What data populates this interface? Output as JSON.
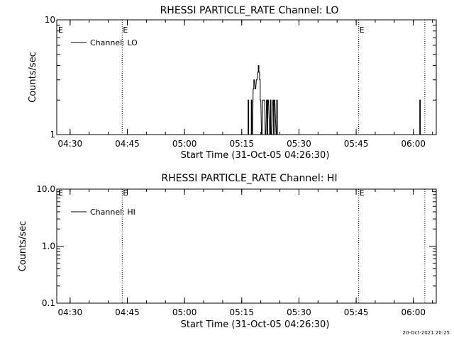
{
  "footer": {
    "timestamp": "20-Oct-2021 20:25"
  },
  "chart_data": [
    {
      "type": "line",
      "title": "RHESSI PARTICLE_RATE Channel: LO",
      "xlabel": "Start Time (31-Oct-05 04:26:30)",
      "ylabel": "Counts/sec",
      "yscale": "log",
      "ylim": [
        1,
        10
      ],
      "ytick_labels": [
        "1",
        "10"
      ],
      "xlim": [
        "04:26:30",
        "06:06:00"
      ],
      "xtick_labels": [
        "04:30",
        "04:45",
        "05:00",
        "05:15",
        "05:30",
        "05:45",
        "06:00"
      ],
      "legend": {
        "entries": [
          "Channel: LO"
        ],
        "placement": "top-left"
      },
      "markers": [
        {
          "time": "04:43:40",
          "label": "E"
        },
        {
          "time": "05:45:40",
          "label": "E"
        },
        {
          "time": "06:03:00",
          "label": ""
        }
      ],
      "series": [
        {
          "name": "Channel: LO",
          "x": [
            "05:16:30",
            "05:16:40",
            "05:16:50",
            "05:17:20",
            "05:17:30",
            "05:17:40",
            "05:18:00",
            "05:18:10",
            "05:18:30",
            "05:18:50",
            "05:19:10",
            "05:19:20",
            "05:19:30",
            "05:19:40",
            "05:19:50",
            "05:20:10",
            "05:20:30",
            "05:20:50",
            "05:21:10",
            "05:21:30",
            "05:21:40",
            "05:21:50",
            "05:22:20",
            "05:22:30",
            "05:22:40",
            "05:23:10",
            "05:23:20",
            "05:23:30",
            "05:24:00",
            "05:24:10",
            "05:24:20",
            "06:01:30",
            "06:01:40",
            "06:01:50"
          ],
          "values": [
            1,
            2,
            1,
            1,
            2,
            1,
            2.5,
            3,
            2.5,
            3,
            3.5,
            4,
            3.5,
            3,
            2,
            1,
            2,
            2,
            1,
            2,
            1,
            2,
            1,
            2,
            1,
            2,
            1,
            2,
            1,
            2,
            1,
            1,
            2,
            1
          ]
        }
      ]
    },
    {
      "type": "line",
      "title": "RHESSI PARTICLE_RATE Channel: HI",
      "xlabel": "Start Time (31-Oct-05 04:26:30)",
      "ylabel": "Counts/sec",
      "yscale": "log",
      "ylim": [
        0.1,
        10
      ],
      "ytick_labels": [
        "0.1",
        "1.0",
        "10.0"
      ],
      "xlim": [
        "04:26:30",
        "06:06:00"
      ],
      "xtick_labels": [
        "04:30",
        "04:45",
        "05:00",
        "05:15",
        "05:30",
        "05:45",
        "06:00"
      ],
      "legend": {
        "entries": [
          "Channel: HI"
        ],
        "placement": "top-left"
      },
      "markers": [
        {
          "time": "04:43:40",
          "label": "E"
        },
        {
          "time": "05:45:40",
          "label": "E"
        },
        {
          "time": "06:03:00",
          "label": ""
        }
      ],
      "series": [
        {
          "name": "Channel: HI",
          "x": [],
          "values": []
        }
      ]
    }
  ]
}
